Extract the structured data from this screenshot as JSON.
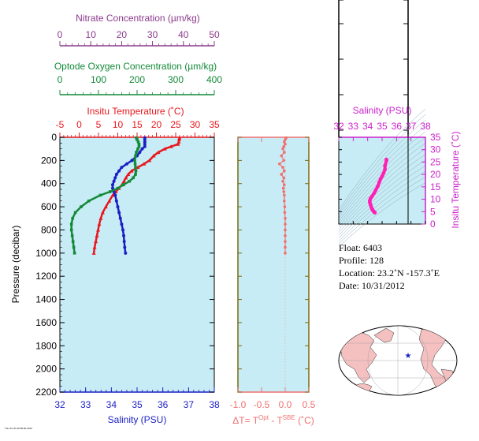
{
  "chart_data": [
    {
      "type": "line",
      "panel": "profile",
      "ylabel": "Pressure (decibar)",
      "y_range": [
        2200,
        0
      ],
      "y_ticks": [
        "0",
        "200",
        "400",
        "600",
        "800",
        "1000",
        "1200",
        "1400",
        "1600",
        "1800",
        "2000",
        "2200"
      ],
      "axes": {
        "nitrate": {
          "label": "Nitrate Concentration (µm/kg)",
          "range": [
            0,
            50
          ],
          "ticks": [
            "0",
            "10",
            "20",
            "30",
            "40",
            "50"
          ],
          "color": "#8b3a8b"
        },
        "oxygen": {
          "label": "Optode Oxygen Concentration (µm/kg)",
          "range": [
            0,
            400
          ],
          "ticks": [
            "0",
            "100",
            "200",
            "300",
            "400"
          ],
          "color": "#138a38"
        },
        "temperature": {
          "label": "Insitu Temperature (˚C)",
          "range": [
            -5,
            35
          ],
          "ticks": [
            "-5",
            "0",
            "5",
            "10",
            "15",
            "20",
            "25",
            "30",
            "35"
          ],
          "color": "#e8171e"
        },
        "salinity": {
          "label": "Salinity (PSU)",
          "range": [
            32,
            38
          ],
          "ticks": [
            "32",
            "33",
            "34",
            "35",
            "36",
            "37",
            "38"
          ],
          "color": "#1b1fc4"
        }
      },
      "series": [
        {
          "key": "temperature",
          "color": "#e8171e",
          "marker": "triangle",
          "p": [
            5,
            20,
            40,
            60,
            80,
            100,
            130,
            160,
            200,
            230,
            260,
            290,
            320,
            350,
            380,
            410,
            440,
            470,
            500,
            550,
            600,
            650,
            700,
            750,
            800,
            850,
            900,
            950,
            1000
          ],
          "values": [
            26,
            25.9,
            25.8,
            25.6,
            23.8,
            22.2,
            20.5,
            19.3,
            18.2,
            16.8,
            15.2,
            13.6,
            12.7,
            12.1,
            11.6,
            11.1,
            10.3,
            9.5,
            8.7,
            7.8,
            6.9,
            6.1,
            5.6,
            5.2,
            4.9,
            4.6,
            4.3,
            4.0,
            3.8
          ]
        },
        {
          "key": "salinity",
          "color": "#1b1fc4",
          "marker": "circle",
          "p": [
            5,
            20,
            40,
            60,
            80,
            100,
            130,
            160,
            200,
            230,
            260,
            290,
            320,
            350,
            380,
            410,
            440,
            470,
            500,
            550,
            600,
            650,
            700,
            750,
            800,
            850,
            900,
            950,
            1000
          ],
          "values": [
            35.3,
            35.3,
            35.3,
            35.3,
            35.3,
            35.2,
            35.1,
            35.0,
            34.8,
            34.6,
            34.4,
            34.3,
            34.2,
            34.15,
            34.1,
            34.05,
            34.05,
            34.1,
            34.15,
            34.2,
            34.25,
            34.3,
            34.35,
            34.4,
            34.45,
            34.48,
            34.5,
            34.52,
            34.55
          ]
        },
        {
          "key": "oxygen",
          "color": "#138a38",
          "marker": "square",
          "p": [
            5,
            20,
            40,
            60,
            80,
            100,
            130,
            160,
            200,
            230,
            260,
            290,
            320,
            350,
            380,
            410,
            440,
            470,
            500,
            550,
            600,
            650,
            700,
            750,
            800,
            850,
            900,
            950,
            1000
          ],
          "values": [
            198,
            200,
            203,
            205,
            205,
            202,
            198,
            196,
            194,
            195,
            196,
            197,
            196,
            190,
            180,
            165,
            150,
            130,
            105,
            75,
            55,
            40,
            33,
            30,
            30,
            32,
            34,
            36,
            38
          ]
        }
      ]
    },
    {
      "type": "scatter",
      "panel": "delta",
      "xlabel": "ΔT= T",
      "xlabel_sup1": "Opt",
      "xlabel_mid": " - T",
      "xlabel_sup2": "SBE",
      "xlabel_unit": " (˚C)",
      "x_range": [
        -1.0,
        0.5
      ],
      "x_ticks": [
        "-1.0",
        "-0.5",
        "0.0",
        "0.5"
      ],
      "y_range": [
        2200,
        0
      ],
      "color": "#f07070",
      "p": [
        5,
        20,
        40,
        60,
        80,
        100,
        130,
        160,
        200,
        230,
        260,
        290,
        320,
        350,
        380,
        410,
        440,
        470,
        500,
        550,
        600,
        650,
        700,
        750,
        800,
        850,
        900,
        950,
        1000
      ],
      "values": [
        0.02,
        0.0,
        -0.02,
        0.0,
        -0.03,
        -0.05,
        -0.02,
        -0.08,
        -0.03,
        -0.12,
        -0.05,
        -0.02,
        -0.08,
        -0.03,
        -0.05,
        -0.02,
        -0.04,
        -0.03,
        -0.02,
        -0.02,
        -0.01,
        -0.01,
        0.0,
        0.0,
        0.0,
        0.0,
        0.0,
        0.0,
        0.0
      ]
    },
    {
      "type": "line",
      "panel": "ts",
      "xlabel": "Salinity (PSU)",
      "ylabel": "Insitu Temperature (˚C)",
      "x_range": [
        32,
        38
      ],
      "y_range": [
        0,
        35
      ],
      "x_ticks": [
        "32",
        "33",
        "34",
        "35",
        "36",
        "37",
        "38"
      ],
      "y_ticks": [
        "0",
        "5",
        "10",
        "15",
        "20",
        "25",
        "30",
        "35"
      ],
      "color": "#ff1fb4",
      "points": [
        [
          35.3,
          26
        ],
        [
          35.3,
          25.6
        ],
        [
          35.2,
          23.5
        ],
        [
          35.2,
          22
        ],
        [
          35.1,
          20.5
        ],
        [
          35.0,
          19.3
        ],
        [
          34.9,
          18.2
        ],
        [
          34.8,
          16.8
        ],
        [
          34.7,
          15.2
        ],
        [
          34.55,
          13.6
        ],
        [
          34.45,
          12.5
        ],
        [
          34.3,
          11.1
        ],
        [
          34.2,
          10.3
        ],
        [
          34.15,
          9.5
        ],
        [
          34.15,
          8.7
        ],
        [
          34.2,
          7.8
        ],
        [
          34.25,
          6.9
        ],
        [
          34.3,
          6.1
        ],
        [
          34.35,
          5.6
        ],
        [
          34.4,
          5.2
        ],
        [
          34.45,
          4.9
        ],
        [
          34.5,
          4.6
        ]
      ]
    }
  ],
  "info": {
    "float": "Float:  6403",
    "profile": "Profile:  128",
    "location": "Location:  23.2˚N  -157.3˚E",
    "date": "Date:  10/31/2012"
  },
  "footer_note": "Thu Oct 31 00:00:00 2012",
  "colors": {
    "panel_bg": "#c8ecf5",
    "map_land": "#f5c0c0",
    "map_ocean": "#ffffff"
  }
}
